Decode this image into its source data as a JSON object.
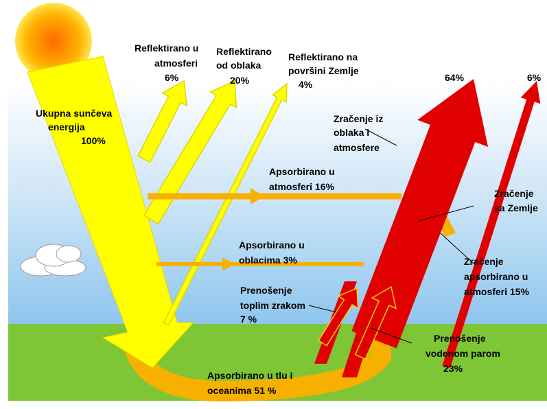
{
  "labels": [
    {
      "lines": [
        "Ukupna sunčeva",
        "energija",
        "100%"
      ]
    },
    {
      "lines": [
        "Reflektirano u",
        "atmosferi",
        "6%"
      ]
    },
    {
      "lines": [
        "Reflektirano",
        "od oblaka",
        "20%"
      ]
    },
    {
      "lines": [
        "Reflektirano na",
        "površini Zemlje",
        "4%"
      ]
    },
    {
      "lines": [
        "64%"
      ]
    },
    {
      "lines": [
        "6%"
      ]
    },
    {
      "lines": [
        "Zračenje iz",
        "oblaka i",
        "atmosfere"
      ]
    },
    {
      "lines": [
        "Apsorbirano u",
        "atmosferi  16%"
      ]
    },
    {
      "lines": [
        "Zračenje",
        "sa Zemlje"
      ]
    },
    {
      "lines": [
        "Apsorbirano u",
        "oblacima  3%"
      ]
    },
    {
      "lines": [
        "Zračenje",
        "apsorbirano u",
        "atmosferi  15%"
      ]
    },
    {
      "lines": [
        "Prenošenje",
        "toplim zrakom",
        "7 %"
      ]
    },
    {
      "lines": [
        "Prenošenje",
        "vodenom parom",
        "23%"
      ]
    },
    {
      "lines": [
        "Apsorbirano u tlu i",
        "oceanima  51 %"
      ]
    }
  ]
}
